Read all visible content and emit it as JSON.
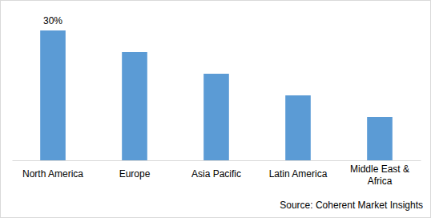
{
  "chart_data": {
    "type": "bar",
    "categories": [
      "North America",
      "Europe",
      "Asia Pacific",
      "Latin America",
      "Middle East & Africa"
    ],
    "values": [
      30,
      25,
      20,
      15,
      10
    ],
    "value_labels": [
      "30%",
      null,
      null,
      null,
      null
    ],
    "data_labels": true,
    "color": "#5b9bd5",
    "ylim": [
      0,
      30
    ],
    "tick_labels": "x",
    "grid": false,
    "source": "Source: Coherent Market Insights"
  }
}
